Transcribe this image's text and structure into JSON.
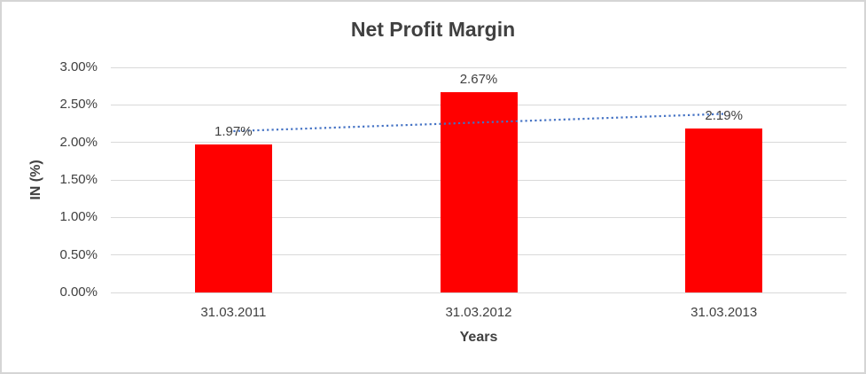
{
  "chart_data": {
    "type": "bar",
    "title": "Net Profit Margin",
    "xlabel": "Years",
    "ylabel": "IN (%)",
    "categories": [
      "31.03.2011",
      "31.03.2012",
      "31.03.2013"
    ],
    "values": [
      1.97,
      2.67,
      2.19
    ],
    "data_labels": [
      "1.97%",
      "2.67%",
      "2.19%"
    ],
    "ylim": [
      0,
      3
    ],
    "ytick_values": [
      0,
      0.5,
      1,
      1.5,
      2,
      2.5,
      3
    ],
    "ytick_labels": [
      "0.00%",
      "0.50%",
      "1.00%",
      "1.50%",
      "2.00%",
      "2.50%",
      "3.00%"
    ],
    "grid": true,
    "legend": "none",
    "bar_color": "#ff0000",
    "grid_color": "#d9d9d9",
    "text_color": "#404040",
    "trendline": {
      "style": "dotted",
      "color": "#4472c4",
      "start_value": 2.15,
      "end_value": 2.38
    }
  }
}
